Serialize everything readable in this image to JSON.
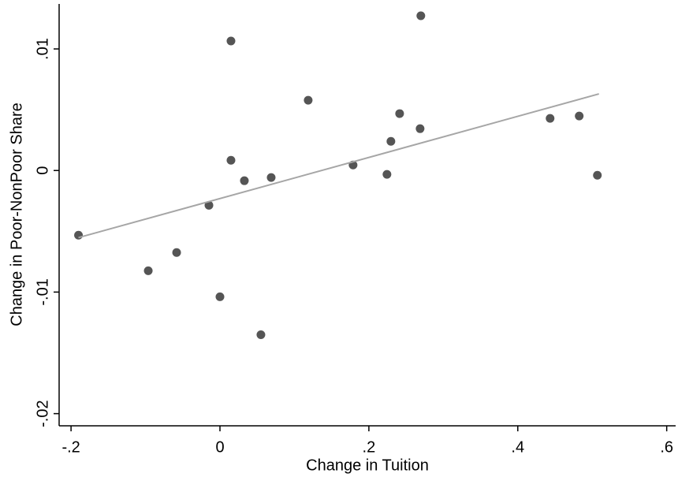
{
  "chart_data": {
    "type": "scatter",
    "x_label": "Change in Tuition",
    "y_label": "Change in Poor-NonPoor Share",
    "xlim": [
      -0.216,
      0.612
    ],
    "ylim": [
      -0.021,
      0.0137
    ],
    "xticks": [
      {
        "value": -0.2,
        "label": "-.2"
      },
      0,
      {
        "value": 0.2,
        "label": ".2"
      },
      {
        "value": 0.4,
        "label": ".4"
      },
      {
        "value": 0.6,
        "label": ".6"
      }
    ],
    "yticks": [
      {
        "value": -0.02,
        "label": "-.02"
      },
      {
        "value": -0.01,
        "label": "-.01"
      },
      0,
      {
        "value": 0.01,
        "label": ".01"
      }
    ],
    "grid": false,
    "series": [
      {
        "type": "scatter",
        "color": "#555555",
        "x": [
          -0.19,
          -0.0963,
          -0.0582,
          -0.0148,
          0.0,
          0.0148,
          0.0148,
          0.0328,
          0.055,
          0.0688,
          0.1185,
          0.1788,
          0.2243,
          0.2296,
          0.2413,
          0.2688,
          0.2698,
          0.4434,
          0.4825,
          0.5069
        ],
        "values": [
          -0.00532,
          -0.00825,
          -0.00675,
          -0.00286,
          -0.01039,
          0.01065,
          0.00084,
          -0.00084,
          -0.01351,
          -0.00058,
          0.00578,
          0.00045,
          -0.00032,
          0.0024,
          0.00468,
          0.00344,
          0.01273,
          0.00429,
          0.00448,
          -0.00039
        ]
      },
      {
        "type": "line",
        "color": "#a6a6a6",
        "x": [
          -0.19,
          0.509
        ],
        "values": [
          -0.00552,
          0.0063
        ]
      }
    ]
  }
}
